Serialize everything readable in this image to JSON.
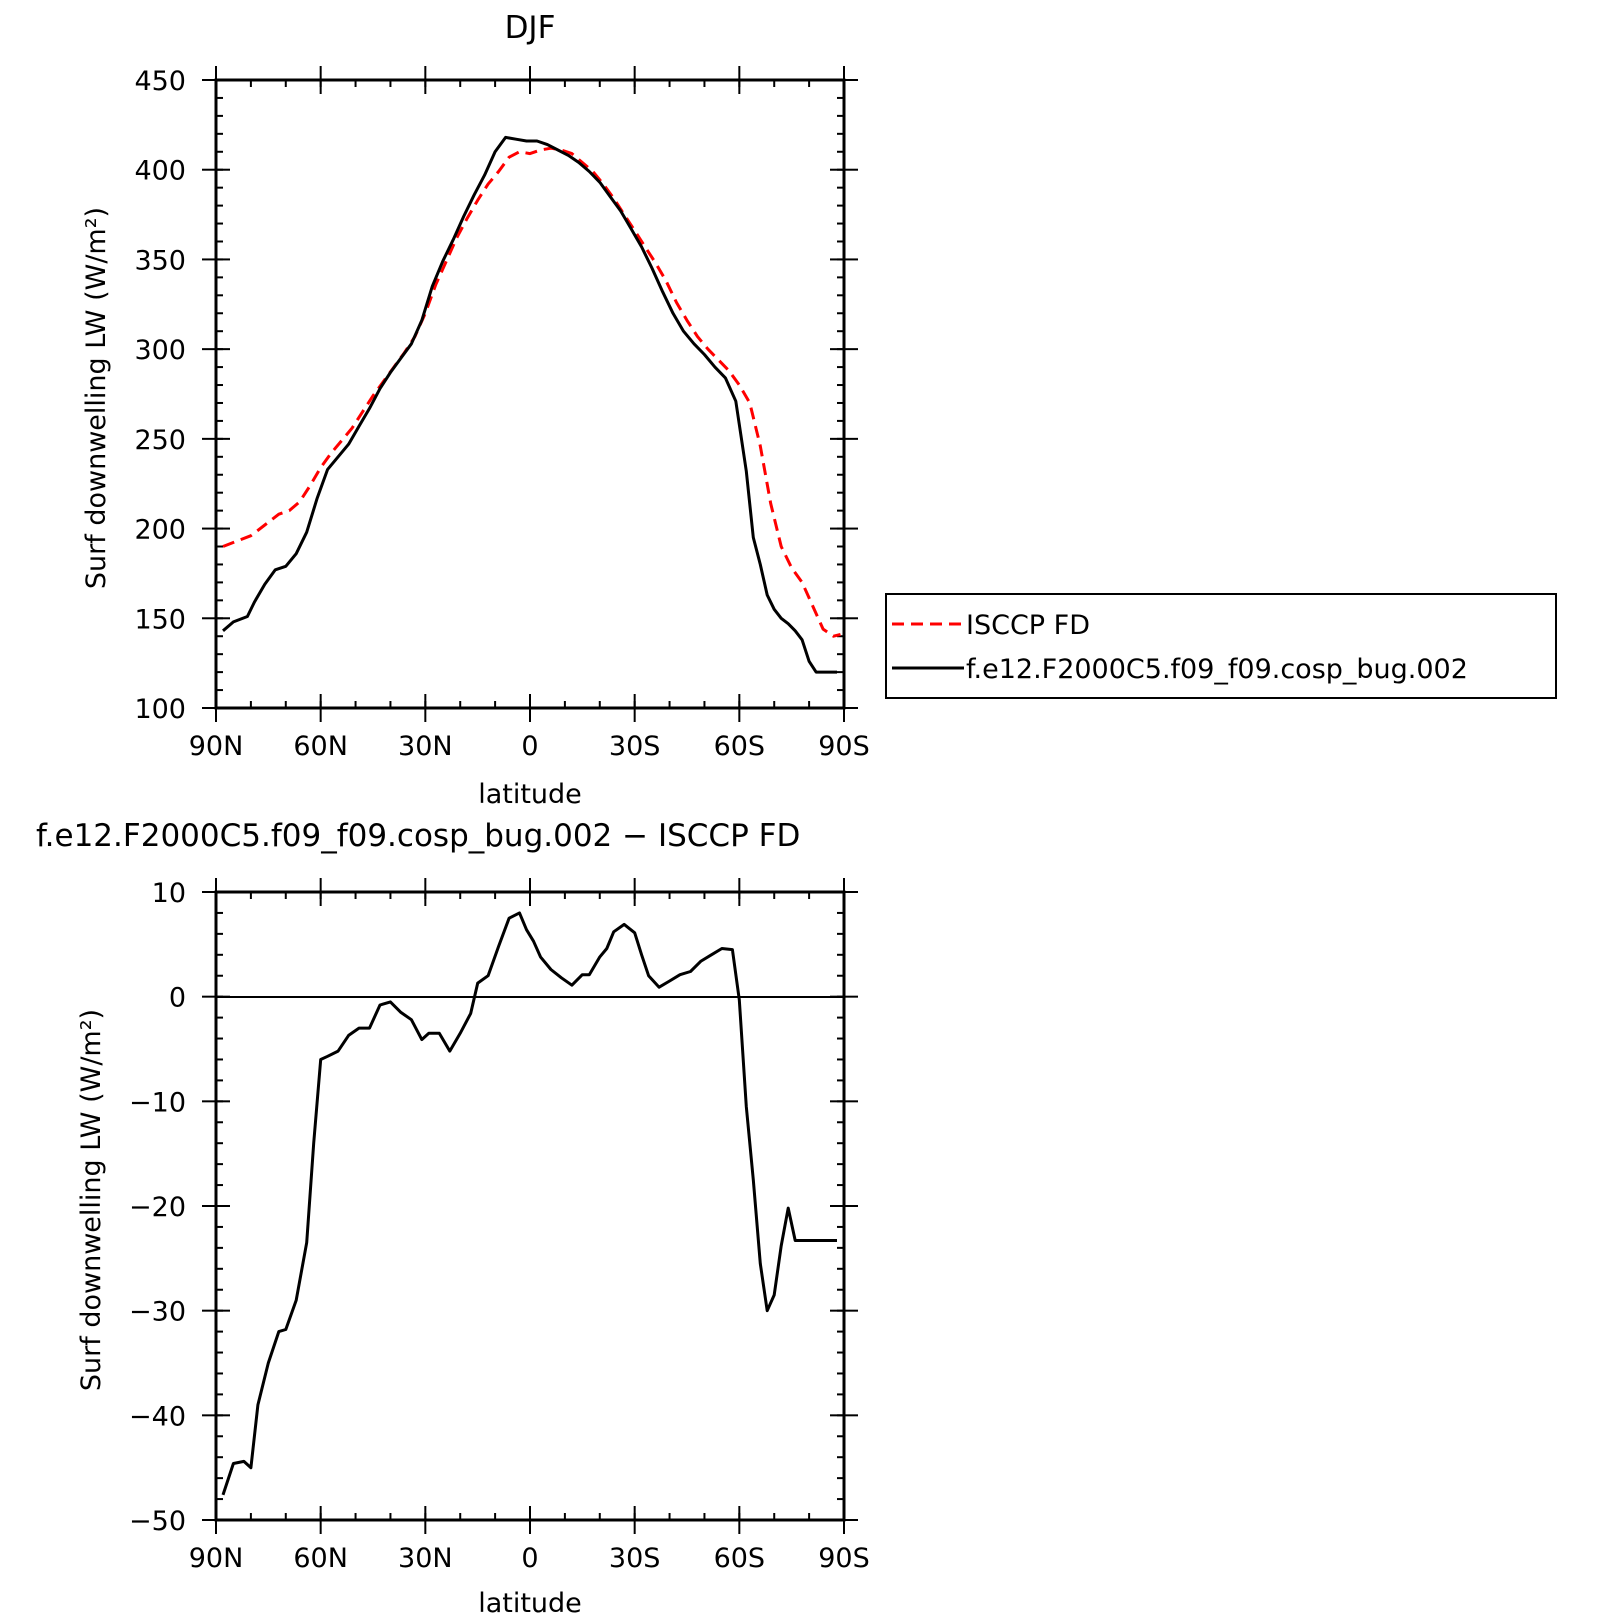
{
  "colors": {
    "model": "#000000",
    "obs": "#ff0000",
    "background": "#ffffff"
  },
  "chart_data": [
    {
      "type": "line",
      "title": "DJF",
      "xlabel": "latitude",
      "ylabel": "Surf downwelling LW (W/m²)",
      "xlim": [
        90,
        -90
      ],
      "ylim": [
        100,
        450
      ],
      "xticks": [
        90,
        60,
        30,
        0,
        -30,
        -60,
        -90
      ],
      "xtick_labels": [
        "90N",
        "60N",
        "30N",
        "0",
        "30S",
        "60S",
        "90S"
      ],
      "yticks": [
        100,
        150,
        200,
        250,
        300,
        350,
        400,
        450
      ],
      "ytick_labels": [
        "100",
        "150",
        "200",
        "250",
        "300",
        "350",
        "400",
        "450"
      ],
      "legend": {
        "position": "right",
        "entries": [
          {
            "label": "ISCCP FD",
            "style": "dashed",
            "color": "#ff0000"
          },
          {
            "label": "f.e12.F2000C5.f09_f09.cosp_bug.002",
            "style": "solid",
            "color": "#000000"
          }
        ]
      },
      "series": [
        {
          "name": "ISCCP FD",
          "style": "dashed",
          "color": "#ff0000",
          "x": [
            88,
            84,
            80,
            76,
            72,
            69,
            66,
            63,
            60,
            57,
            54,
            51,
            48,
            45,
            42,
            39,
            36,
            33,
            30,
            27,
            24,
            21,
            18,
            15,
            12,
            9,
            6,
            3,
            0,
            -3,
            -6,
            -9,
            -12,
            -15,
            -18,
            -21,
            -24,
            -27,
            -30,
            -33,
            -36,
            -39,
            -42,
            -45,
            -48,
            -51,
            -54,
            -57,
            -60,
            -63,
            -66,
            -69,
            -72,
            -75,
            -78,
            -81,
            -84,
            -87,
            -89
          ],
          "y": [
            190,
            193,
            196,
            202,
            208,
            210,
            215,
            224,
            234,
            242,
            249,
            256,
            265,
            274,
            282,
            290,
            298,
            307,
            320,
            336,
            349,
            362,
            373,
            383,
            392,
            399,
            407,
            410,
            409,
            411,
            412,
            411,
            409,
            404,
            399,
            392,
            384,
            375,
            366,
            357,
            348,
            338,
            326,
            316,
            307,
            300,
            294,
            288,
            280,
            270,
            246,
            214,
            190,
            178,
            170,
            157,
            144,
            140,
            141
          ]
        },
        {
          "name": "f.e12.F2000C5.f09_f09.cosp_bug.002",
          "style": "solid",
          "color": "#000000",
          "x": [
            88,
            85,
            81,
            79,
            76,
            73,
            70,
            67,
            64,
            61,
            58,
            55,
            52,
            49,
            46,
            43,
            40,
            37,
            34,
            31,
            28,
            25,
            22,
            19,
            16,
            13,
            10,
            7,
            4,
            1,
            -2,
            -5,
            -8,
            -11,
            -14,
            -17,
            -20,
            -23,
            -26,
            -29,
            -32,
            -35,
            -38,
            -41,
            -44,
            -47,
            -50,
            -53,
            -56,
            -59,
            -62,
            -64,
            -66,
            -68,
            -70,
            -72,
            -74,
            -76,
            -78,
            -80,
            -82,
            -84,
            -86,
            -88
          ],
          "y": [
            143,
            148,
            151,
            159,
            169,
            177,
            179,
            186,
            198,
            217,
            233,
            240,
            247,
            257,
            267,
            278,
            287,
            295,
            303,
            316,
            335,
            349,
            361,
            374,
            386,
            397,
            410,
            418,
            417,
            416,
            416,
            414,
            411,
            408,
            404,
            399,
            393,
            385,
            377,
            367,
            357,
            345,
            332,
            320,
            310,
            303,
            297,
            290,
            284,
            271,
            232,
            195,
            180,
            163,
            155,
            150,
            147,
            143,
            138,
            126,
            120,
            120,
            120,
            120
          ]
        }
      ]
    },
    {
      "type": "line",
      "title": "f.e12.F2000C5.f09_f09.cosp_bug.002 − ISCCP FD",
      "xlabel": "latitude",
      "ylabel": "Surf downwelling LW (W/m²)",
      "xlim": [
        90,
        -90
      ],
      "ylim": [
        -50,
        10
      ],
      "xticks": [
        90,
        60,
        30,
        0,
        -30,
        -60,
        -90
      ],
      "xtick_labels": [
        "90N",
        "60N",
        "30N",
        "0",
        "30S",
        "60S",
        "90S"
      ],
      "yticks": [
        -50,
        -40,
        -30,
        -20,
        -10,
        0,
        10
      ],
      "ytick_labels": [
        "−50",
        "−40",
        "−30",
        "−20",
        "−10",
        "0",
        "10"
      ],
      "series": [
        {
          "style": "solid",
          "color": "#000000",
          "x": [
            88,
            85,
            82,
            80,
            78,
            75,
            72,
            70,
            67,
            64,
            62,
            60,
            58,
            55,
            52,
            49,
            46,
            43,
            40,
            37,
            34,
            31,
            29,
            26,
            23,
            20,
            17,
            15,
            12,
            9,
            6,
            3,
            1,
            -1,
            -3,
            -6,
            -9,
            -12,
            -15,
            -17,
            -20,
            -22,
            -24,
            -27,
            -30,
            -32,
            -34,
            -37,
            -40,
            -43,
            -46,
            -49,
            -52,
            -55,
            -58,
            -60,
            -62,
            -64,
            -66,
            -68,
            -70,
            -72,
            -74,
            -76,
            -78,
            -80,
            -82,
            -84,
            -86,
            -88
          ],
          "y": [
            -47.6,
            -44.6,
            -44.4,
            -45.0,
            -39.0,
            -35.0,
            -32.0,
            -31.8,
            -29.0,
            -23.5,
            -14.0,
            -6.0,
            -5.7,
            -5.2,
            -3.7,
            -3.0,
            -3.0,
            -0.8,
            -0.5,
            -1.5,
            -2.2,
            -4.1,
            -3.5,
            -3.5,
            -5.2,
            -3.5,
            -1.6,
            1.3,
            2.0,
            4.8,
            7.5,
            8.0,
            6.4,
            5.3,
            3.8,
            2.6,
            1.8,
            1.1,
            2.1,
            2.1,
            3.8,
            4.6,
            6.2,
            6.9,
            6.1,
            4.0,
            2.0,
            0.9,
            1.5,
            2.1,
            2.4,
            3.4,
            4.0,
            4.6,
            4.5,
            -0.3,
            -10.5,
            -17.5,
            -25.5,
            -30.0,
            -28.5,
            -23.8,
            -20.2,
            -23.3,
            -23.3,
            -23.3,
            -23.3,
            -23.3,
            -23.3,
            -23.3
          ]
        }
      ]
    }
  ]
}
